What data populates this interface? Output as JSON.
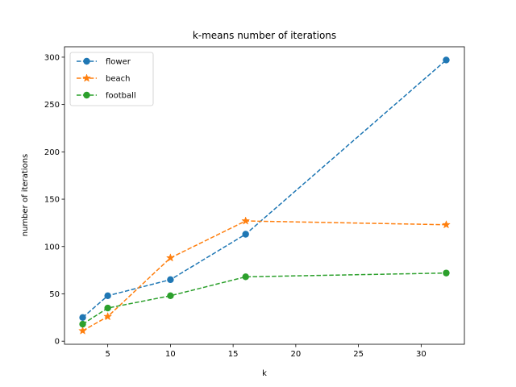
{
  "chart_data": {
    "type": "line",
    "title": "k-means number of iterations",
    "xlabel": "k",
    "ylabel": "number of iterations",
    "x": [
      3,
      5,
      10,
      16,
      32
    ],
    "xlim": [
      1.55,
      33.45
    ],
    "ylim": [
      -3.25,
      311
    ],
    "xticks": [
      5,
      10,
      15,
      20,
      25,
      30
    ],
    "yticks": [
      0,
      50,
      100,
      150,
      200,
      250,
      300
    ],
    "grid": false,
    "legend_position": "upper left",
    "series": [
      {
        "name": "flower",
        "values": [
          25,
          48,
          65,
          113,
          297
        ],
        "color": "#1f77b4",
        "marker": "circle",
        "linestyle": "dashed"
      },
      {
        "name": "beach",
        "values": [
          11,
          26,
          88,
          127,
          123
        ],
        "color": "#ff7f0e",
        "marker": "star",
        "linestyle": "dashed"
      },
      {
        "name": "football",
        "values": [
          18,
          35,
          48,
          68,
          72
        ],
        "color": "#2ca02c",
        "marker": "circle",
        "linestyle": "dashed"
      }
    ]
  }
}
